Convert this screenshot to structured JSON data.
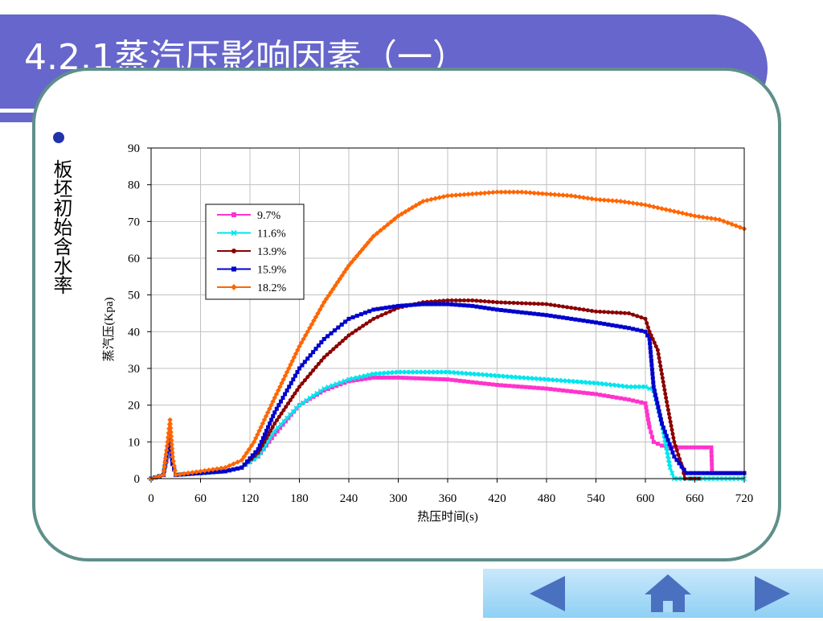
{
  "slide": {
    "title": "4.2.1蒸汽压影响因素（一）",
    "bullet": "板坯初始含水率"
  },
  "colors": {
    "title_band": "#6666cc",
    "frame": "#5f8f8a",
    "nav_bar": "#a9dcf8",
    "nav_arrow": "#4a70c0"
  },
  "nav": {
    "prev_icon": "arrow-left-icon",
    "home_icon": "home-icon",
    "next_icon": "arrow-right-icon"
  },
  "chart_data": {
    "type": "line",
    "xlabel": "热压时间(s)",
    "ylabel": "蒸汽压(Kpa)",
    "xlim": [
      0,
      720
    ],
    "ylim": [
      0,
      90
    ],
    "xticks": [
      0,
      60,
      120,
      180,
      240,
      300,
      360,
      420,
      480,
      540,
      600,
      660,
      720
    ],
    "yticks": [
      0,
      10,
      20,
      30,
      40,
      50,
      60,
      70,
      80,
      90
    ],
    "grid": true,
    "legend_position": "upper-left",
    "series": [
      {
        "name": "9.7%",
        "color": "#ff33cc",
        "marker": "square",
        "x": [
          0,
          15,
          20,
          23,
          26,
          30,
          60,
          90,
          110,
          130,
          150,
          180,
          210,
          240,
          270,
          300,
          360,
          420,
          480,
          540,
          580,
          600,
          605,
          610,
          620,
          640,
          660,
          680,
          681,
          720
        ],
        "y": [
          0,
          1,
          6,
          10,
          4,
          1,
          1.5,
          2,
          3,
          6,
          12,
          20,
          24,
          26.5,
          27.5,
          27.5,
          27,
          25.5,
          24.5,
          23,
          21.5,
          20.5,
          14,
          10,
          9,
          8.5,
          8.5,
          8.5,
          1.5,
          1.5
        ]
      },
      {
        "name": "11.6%",
        "color": "#00e5ee",
        "marker": "x",
        "x": [
          0,
          15,
          20,
          23,
          26,
          30,
          60,
          90,
          110,
          130,
          150,
          180,
          210,
          240,
          270,
          300,
          360,
          420,
          480,
          540,
          580,
          600,
          610,
          620,
          630,
          635,
          720
        ],
        "y": [
          0,
          1,
          7,
          11,
          4,
          1,
          1.5,
          2,
          3,
          6,
          13,
          20,
          24.5,
          27,
          28.5,
          29,
          29,
          28,
          27,
          26,
          25,
          25,
          24,
          15,
          3,
          0,
          0
        ]
      },
      {
        "name": "13.9%",
        "color": "#8b0000",
        "marker": "circle",
        "x": [
          0,
          15,
          20,
          23,
          26,
          30,
          60,
          90,
          110,
          130,
          150,
          180,
          210,
          240,
          270,
          300,
          330,
          360,
          390,
          420,
          480,
          540,
          580,
          600,
          605,
          615,
          625,
          635,
          645,
          648,
          655,
          665
        ],
        "y": [
          0,
          1,
          8,
          12,
          4,
          1,
          1.5,
          2,
          3,
          7,
          15,
          25,
          33,
          39,
          43.5,
          46.5,
          48,
          48.5,
          48.5,
          48,
          47.5,
          45.5,
          45,
          43.5,
          40,
          35,
          22,
          10,
          3,
          0,
          0,
          0
        ]
      },
      {
        "name": "15.9%",
        "color": "#0000cc",
        "marker": "square",
        "x": [
          0,
          15,
          20,
          23,
          26,
          30,
          60,
          90,
          110,
          130,
          150,
          180,
          210,
          240,
          270,
          300,
          330,
          360,
          390,
          420,
          480,
          540,
          580,
          600,
          605,
          610,
          620,
          635,
          650,
          660,
          720
        ],
        "y": [
          0,
          1,
          8,
          12,
          4,
          1,
          1.5,
          2,
          3,
          8,
          18,
          30,
          38,
          43.5,
          46,
          47,
          47.5,
          47.5,
          47,
          46,
          44.5,
          42.5,
          41,
          40,
          38,
          25,
          15,
          6,
          1.5,
          1.5,
          1.5
        ]
      },
      {
        "name": "18.2%",
        "color": "#ff6600",
        "marker": "diamond",
        "x": [
          0,
          15,
          20,
          23,
          26,
          30,
          60,
          90,
          110,
          125,
          150,
          180,
          210,
          240,
          270,
          300,
          330,
          360,
          390,
          420,
          450,
          480,
          510,
          540,
          570,
          600,
          630,
          660,
          690,
          720
        ],
        "y": [
          0,
          1,
          10,
          16,
          6,
          1,
          2,
          3,
          5,
          10,
          22,
          36,
          48,
          58,
          66,
          71.5,
          75.5,
          77,
          77.5,
          78,
          78,
          77.5,
          77,
          76,
          75.5,
          74.5,
          73,
          71.5,
          70.5,
          68
        ]
      }
    ]
  }
}
